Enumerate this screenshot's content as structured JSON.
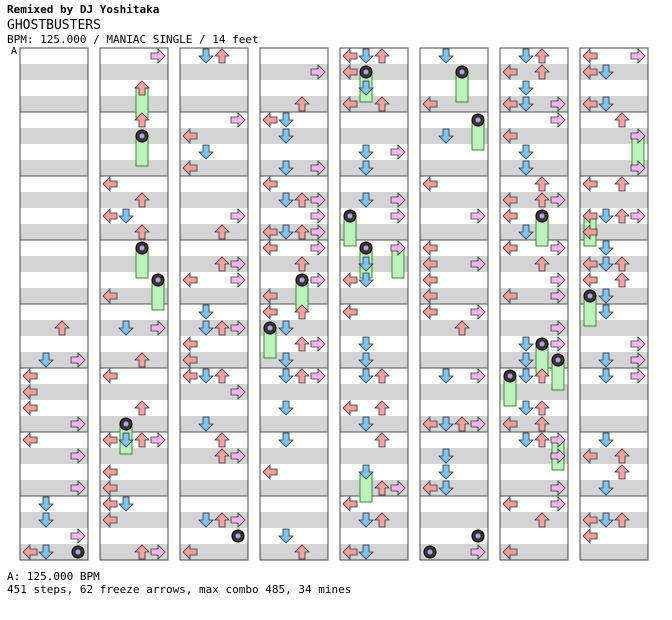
{
  "header": {
    "remix_line": "Remixed by DJ Yoshitaka",
    "song_title": "GHOSTBUSTERS",
    "chart_meta": "BPM: 125.000 / MANIAC SINGLE / 14 feet",
    "bpm_marker": "A"
  },
  "footer": {
    "bpm_legend": "A: 125.000 BPM",
    "summary": "451 steps, 62 freeze arrows, max combo 485, 34 mines"
  },
  "colors": {
    "left": "#f39c9c",
    "down": "#7fc3f4",
    "up": "#f5a3a3",
    "right": "#f3b5f0",
    "freeze": "#bff0bb",
    "mine": "#333333",
    "stripe": "#d4d4d4"
  },
  "chart_data": {
    "type": "table",
    "columns": 8,
    "measures_per_column": 8,
    "lanes": [
      "left",
      "down",
      "up",
      "right"
    ],
    "steps": 451,
    "freeze_arrows": 62,
    "max_combo": 485,
    "mines": 34,
    "bpm": 125.0
  }
}
